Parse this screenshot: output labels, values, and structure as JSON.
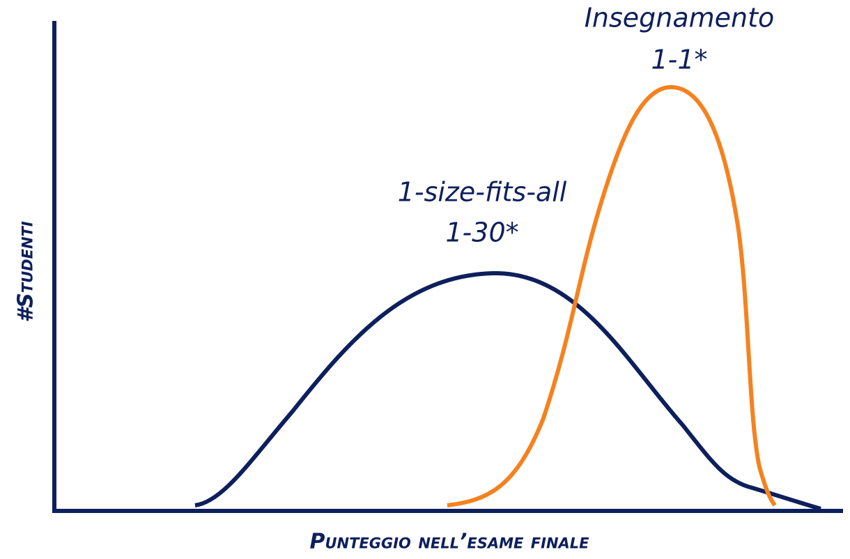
{
  "labels": {
    "top_curve": [
      "Insegnamento",
      "1-1*"
    ],
    "bottom_curve": [
      "1-size-fits-all",
      "1-30*"
    ]
  },
  "axes": {
    "y_label": "#Studenti",
    "x_label": "Punteggio nell’esame finale"
  }
}
